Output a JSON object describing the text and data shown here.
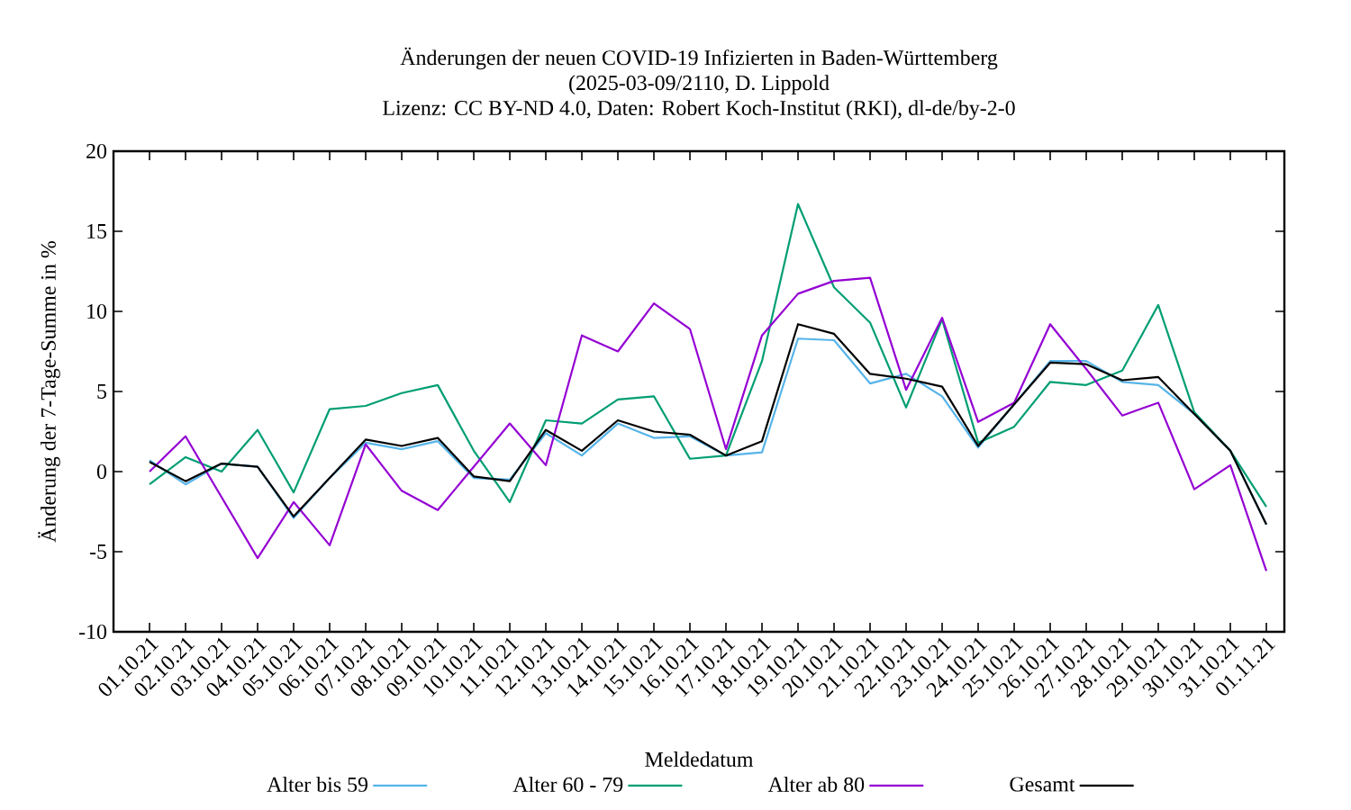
{
  "chart_data": {
    "type": "line",
    "title": "Änderungen der neuen COVID-19 Infizierten in Baden-Württemberg",
    "subtitle": "(2025-03-09/2110, D. Lippold",
    "annotations": [
      "Lizenz: CC BY-ND 4.0, Daten: Robert Koch-Institut (RKI), dl-de/by-2-0"
    ],
    "xlabel": "Meldedatum",
    "ylabel": "Änderung der 7-Tage-Summe in %",
    "categories": [
      "01.10.21",
      "02.10.21",
      "03.10.21",
      "04.10.21",
      "05.10.21",
      "06.10.21",
      "07.10.21",
      "08.10.21",
      "09.10.21",
      "10.10.21",
      "11.10.21",
      "12.10.21",
      "13.10.21",
      "14.10.21",
      "15.10.21",
      "16.10.21",
      "17.10.21",
      "18.10.21",
      "19.10.21",
      "20.10.21",
      "21.10.21",
      "22.10.21",
      "23.10.21",
      "24.10.21",
      "25.10.21",
      "26.10.21",
      "27.10.21",
      "28.10.21",
      "29.10.21",
      "30.10.21",
      "31.10.21",
      "01.11.21"
    ],
    "ylim": [
      -10,
      20
    ],
    "yticks": [
      -10,
      -5,
      0,
      5,
      10,
      15,
      20
    ],
    "legend": "bottom",
    "series": [
      {
        "name": "Alter bis 59",
        "color": "#56b4e9",
        "values": [
          0.7,
          -0.8,
          0.5,
          0.3,
          -2.9,
          -0.4,
          1.8,
          1.4,
          1.9,
          -0.4,
          -0.5,
          2.4,
          1.0,
          3.0,
          2.1,
          2.2,
          1.0,
          1.2,
          8.3,
          8.2,
          5.5,
          6.1,
          4.7,
          1.5,
          4.2,
          6.9,
          6.9,
          5.6,
          5.4,
          3.6,
          1.3,
          -3.3
        ]
      },
      {
        "name": "Alter 60 - 79",
        "color": "#009e73",
        "values": [
          -0.8,
          0.9,
          0.0,
          2.6,
          -1.3,
          3.9,
          4.1,
          4.9,
          5.4,
          1.3,
          -1.9,
          3.2,
          3.0,
          4.5,
          4.7,
          0.8,
          1.0,
          6.9,
          16.7,
          11.5,
          9.3,
          4.0,
          9.5,
          1.8,
          2.8,
          5.6,
          5.4,
          6.3,
          10.4,
          3.7,
          1.3,
          -2.2
        ]
      },
      {
        "name": "Alter ab 80",
        "color": "#9400d3",
        "values": [
          0.0,
          2.2,
          -1.6,
          -5.4,
          -1.9,
          -4.6,
          1.7,
          -1.2,
          -2.4,
          0.3,
          3.0,
          0.4,
          8.5,
          7.5,
          10.5,
          8.9,
          1.4,
          8.5,
          11.1,
          11.9,
          12.1,
          5.1,
          9.6,
          3.1,
          4.3,
          9.2,
          6.4,
          3.5,
          4.3,
          -1.1,
          0.4,
          -6.2
        ]
      },
      {
        "name": "Gesamt",
        "color": "#000000",
        "values": [
          0.6,
          -0.6,
          0.5,
          0.3,
          -2.8,
          -0.4,
          2.0,
          1.6,
          2.1,
          -0.3,
          -0.6,
          2.6,
          1.3,
          3.2,
          2.5,
          2.3,
          1.0,
          1.9,
          9.2,
          8.6,
          6.1,
          5.8,
          5.3,
          1.6,
          4.2,
          6.8,
          6.7,
          5.7,
          5.9,
          3.6,
          1.3,
          -3.3
        ]
      }
    ]
  }
}
